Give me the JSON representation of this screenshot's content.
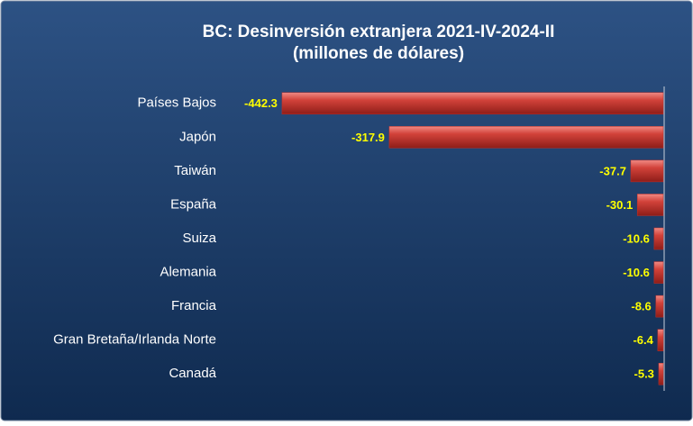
{
  "chart_data": {
    "type": "bar",
    "orientation": "horizontal",
    "title": "BC: Desinversión extranjera  2021-IV-2024-II",
    "subtitle": "(millones de dólares)",
    "categories": [
      "Países Bajos",
      "Japón",
      "Taiwán",
      "España",
      "Suiza",
      "Alemania",
      "Francia",
      "Gran Bretaña/Irlanda Norte",
      "Canadá"
    ],
    "values": [
      -442.3,
      -317.9,
      -37.7,
      -30.1,
      -10.6,
      -10.6,
      -8.6,
      -6.4,
      -5.3
    ],
    "color": "#c0302a",
    "xlim": [
      -460,
      0
    ]
  }
}
